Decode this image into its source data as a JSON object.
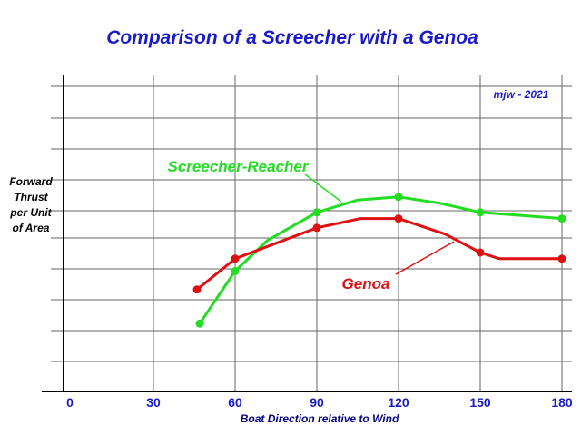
{
  "chart_data": {
    "type": "line",
    "title": "Comparison of a Screecher with a Genoa",
    "credit": "mjw - 2021",
    "xlabel": "Boat Direction relative to Wind",
    "ylabel_lines": [
      "Forward",
      "Thrust",
      "per Unit",
      "of Area"
    ],
    "x_ticks": [
      "0",
      "30",
      "60",
      "90",
      "120",
      "150",
      "180"
    ],
    "x_tick_values": [
      0,
      30,
      60,
      90,
      120,
      150,
      180
    ],
    "xlim": [
      0,
      180
    ],
    "ylim": [
      0,
      10
    ],
    "grid": true,
    "series": [
      {
        "name": "Screecher-Reacher",
        "color": "#22dd22",
        "markers_x": [
          47,
          60,
          90,
          120,
          150,
          180
        ],
        "markers_y": [
          2.2,
          3.9,
          5.8,
          6.3,
          5.8,
          5.6
        ],
        "line_x": [
          47,
          60,
          72,
          90,
          105,
          120,
          135,
          150,
          180
        ],
        "line_y": [
          2.2,
          3.9,
          4.9,
          5.8,
          6.2,
          6.3,
          6.1,
          5.8,
          5.6
        ]
      },
      {
        "name": "Genoa",
        "color": "#dd1111",
        "markers_x": [
          46,
          60,
          90,
          120,
          150,
          180
        ],
        "markers_y": [
          3.3,
          4.3,
          5.3,
          5.6,
          4.5,
          4.3
        ],
        "line_x": [
          46,
          60,
          90,
          106,
          120,
          137,
          150,
          157,
          180
        ],
        "line_y": [
          3.3,
          4.3,
          5.3,
          5.6,
          5.6,
          5.1,
          4.5,
          4.3,
          4.3
        ]
      }
    ],
    "annotations": [
      {
        "text": "Screecher-Reacher",
        "series": "Screecher-Reacher"
      },
      {
        "text": "Genoa",
        "series": "Genoa"
      }
    ]
  },
  "colors": {
    "title": "#1a1acc",
    "axis_labels": "#1a1acc",
    "grid": "#666666",
    "axis": "#000000"
  }
}
